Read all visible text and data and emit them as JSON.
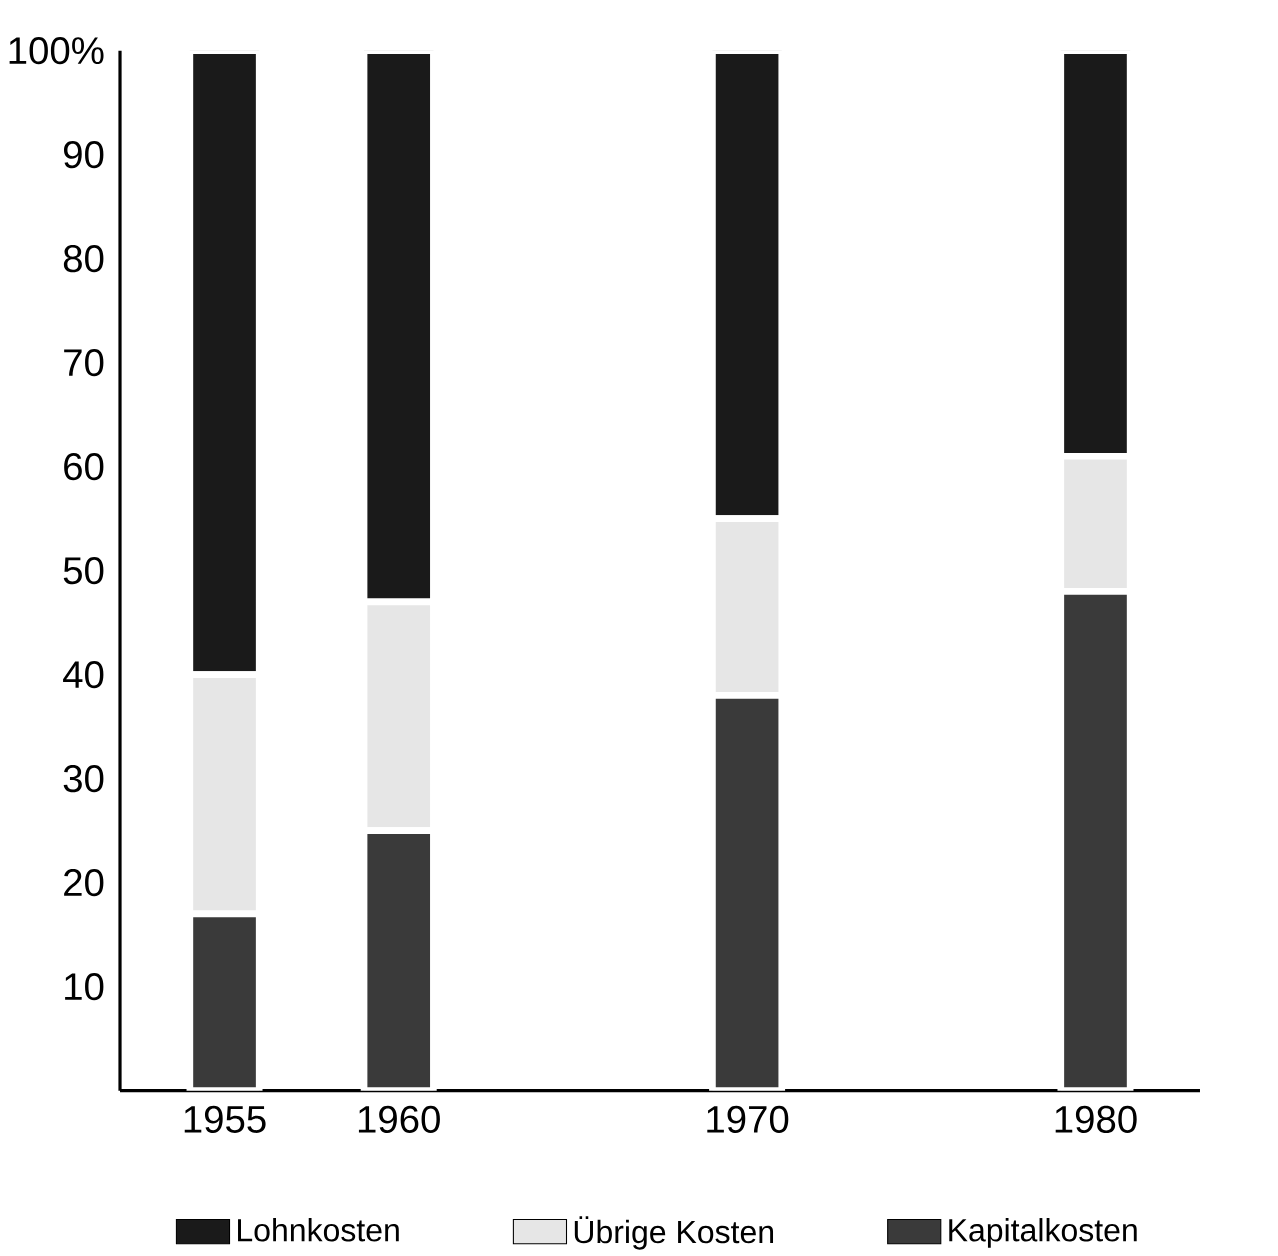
{
  "chart_data": {
    "type": "bar",
    "stacked": true,
    "x": [
      1955,
      1960,
      1970,
      1980
    ],
    "xlim": [
      1952,
      1983
    ],
    "xticks": [
      1955,
      1960,
      1970,
      1980
    ],
    "ylim": [
      0,
      100
    ],
    "yticks": [
      10,
      20,
      30,
      40,
      50,
      60,
      70,
      80,
      90,
      {
        "value": 100,
        "label": "100%"
      }
    ],
    "legend": "bottom",
    "grid": false,
    "series": [
      {
        "name": "Kapitalkosten",
        "color": "#3a3a3a",
        "values": [
          17,
          25,
          38,
          48
        ]
      },
      {
        "name": "Übrige Kosten",
        "color": "#e6e6e6",
        "values": [
          23,
          22,
          17,
          13
        ]
      },
      {
        "name": "Lohnkosten",
        "color": "#1a1a1a",
        "values": [
          60,
          53,
          45,
          39
        ]
      }
    ]
  }
}
